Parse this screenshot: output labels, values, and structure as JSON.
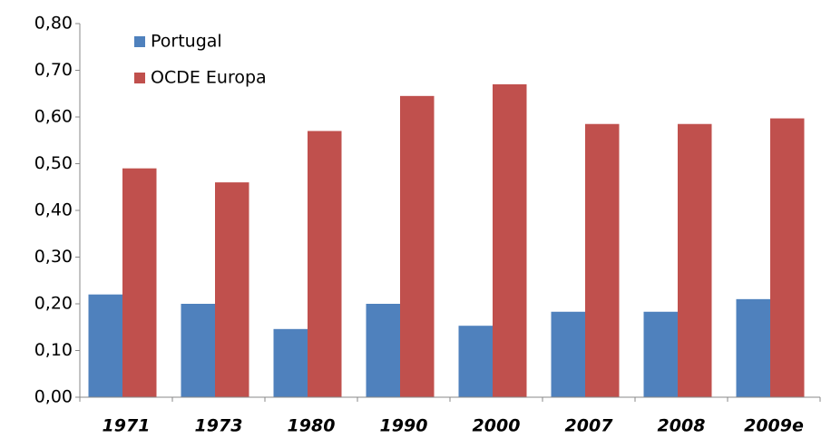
{
  "chart_data": {
    "type": "bar",
    "categories": [
      "1971",
      "1973",
      "1980",
      "1990",
      "2000",
      "2007",
      "2008",
      "2009e"
    ],
    "series": [
      {
        "name": "Portugal",
        "color": "#4f81bd",
        "values": [
          0.22,
          0.2,
          0.146,
          0.2,
          0.153,
          0.183,
          0.183,
          0.21
        ]
      },
      {
        "name": "OCDE Europa",
        "color": "#c0504d",
        "values": [
          0.49,
          0.46,
          0.57,
          0.645,
          0.67,
          0.585,
          0.585,
          0.597
        ]
      }
    ],
    "ylim": [
      0,
      0.8
    ],
    "yticks": [
      {
        "value": 0,
        "label": "0,00"
      },
      {
        "value": 0.1,
        "label": "0,10"
      },
      {
        "value": 0.2,
        "label": "0,20"
      },
      {
        "value": 0.3,
        "label": "0,30"
      },
      {
        "value": 0.4,
        "label": "0,40"
      },
      {
        "value": 0.5,
        "label": "0,50"
      },
      {
        "value": 0.6,
        "label": "0,60"
      },
      {
        "value": 0.7,
        "label": "0,70"
      },
      {
        "value": 0.8,
        "label": "0,80"
      }
    ],
    "grid": false,
    "legend": "top-left"
  }
}
